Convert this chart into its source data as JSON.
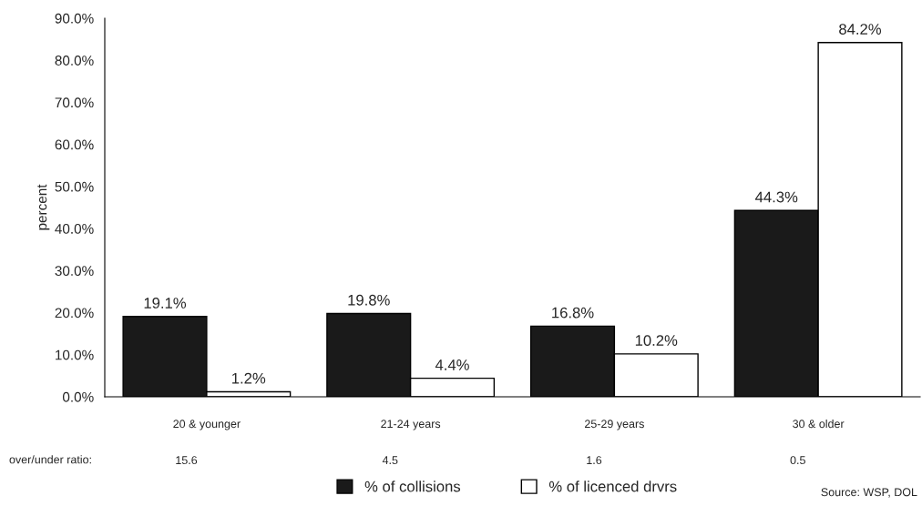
{
  "chart_data": {
    "type": "bar",
    "ylabel": "percent",
    "categories": [
      "20 & younger",
      "21-24 years",
      "25-29 years",
      "30 & older"
    ],
    "series": [
      {
        "name": "% of collisions",
        "color": "#1a1a1a",
        "values": [
          19.1,
          19.8,
          16.8,
          44.3
        ],
        "value_labels": [
          "19.1%",
          "19.8%",
          "16.8%",
          "44.3%"
        ]
      },
      {
        "name": "% of licenced drvrs",
        "color": "#ffffff",
        "values": [
          1.2,
          4.4,
          10.2,
          84.2
        ],
        "value_labels": [
          "1.2%",
          "4.4%",
          "10.2%",
          "84.2%"
        ]
      }
    ],
    "ylim": [
      0,
      90
    ],
    "yticks": [
      {
        "value": 0,
        "label": "0.0%"
      },
      {
        "value": 10,
        "label": "10.0%"
      },
      {
        "value": 20,
        "label": "20.0%"
      },
      {
        "value": 30,
        "label": "30.0%"
      },
      {
        "value": 40,
        "label": "40.0%"
      },
      {
        "value": 50,
        "label": "50.0%"
      },
      {
        "value": 60,
        "label": "60.0%"
      },
      {
        "value": 70,
        "label": "70.0%"
      },
      {
        "value": 80,
        "label": "80.0%"
      },
      {
        "value": 90,
        "label": "90.0%"
      }
    ],
    "grid": false,
    "legend": "bottom",
    "annotations": [
      "over/under ratio:",
      "15.6",
      "4.5",
      "1.6",
      "0.5",
      "Source: WSP, DOL"
    ]
  }
}
